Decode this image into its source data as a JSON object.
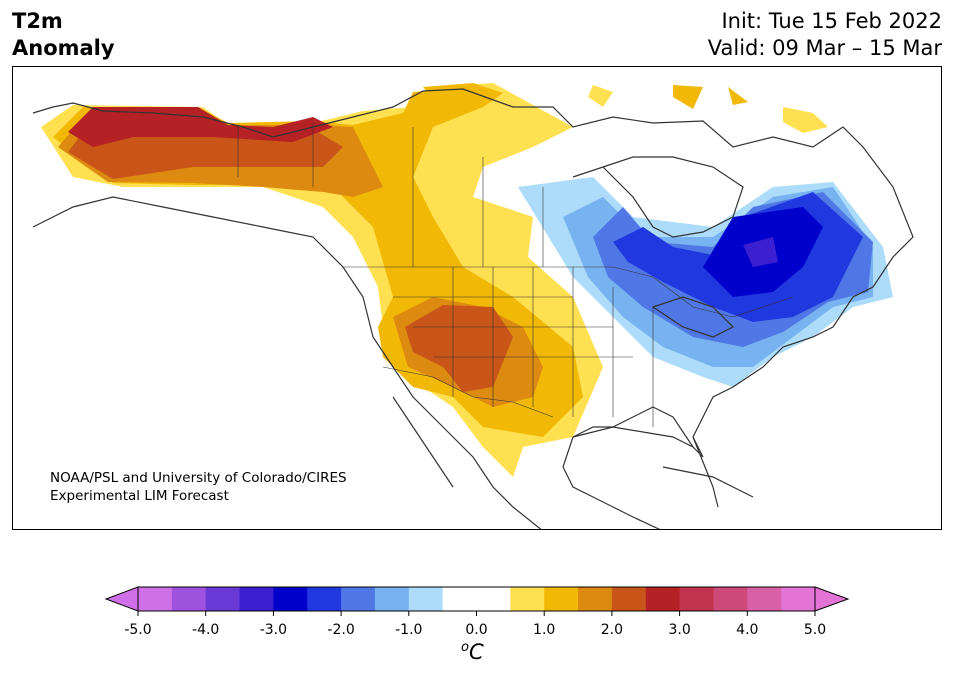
{
  "title": {
    "line1": "T2m",
    "line2": "Anomaly"
  },
  "init": "Init: Tue 15 Feb 2022",
  "valid": "Valid: 09 Mar – 15 Mar",
  "credit": {
    "line1": "NOAA/PSL and University of Colorado/CIRES",
    "line2": "Experimental LIM Forecast"
  },
  "colorbar": {
    "ticks": [
      "-5.0",
      "-4.0",
      "-3.0",
      "-2.0",
      "-1.0",
      "0.0",
      "1.0",
      "2.0",
      "3.0",
      "4.0",
      "5.0"
    ],
    "units_base": "C",
    "units_sup": "o",
    "colors": [
      "#d070e8",
      "#9f52dd",
      "#6b38d8",
      "#3d1fd2",
      "#0000cd",
      "#2038e0",
      "#4f78e6",
      "#78b2f0",
      "#acdcfa",
      "#ffffff",
      "#ffffff",
      "#ffe050",
      "#f2b806",
      "#dd8a10",
      "#c95518",
      "#b52124",
      "#c1334d",
      "#cd4a78",
      "#d960a6",
      "#e373d5"
    ]
  },
  "map_palette": {
    "warm1": "#ffe050",
    "warm2": "#f2b806",
    "warm3": "#dd8a10",
    "warm4": "#c95518",
    "warm5": "#b52124",
    "cool1": "#acdcfa",
    "cool2": "#78b2f0",
    "cool3": "#4f78e6",
    "cool4": "#2038e0",
    "cool5": "#0000cd",
    "cool6": "#3d1fd2"
  }
}
